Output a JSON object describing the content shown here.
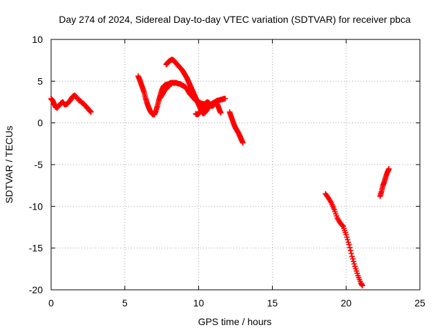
{
  "chart_data": {
    "type": "scatter",
    "title": "Day 274 of 2024, Sidereal Day-to-day VTEC variation (SDTVAR) for receiver pbca",
    "xlabel": "GPS time / hours",
    "ylabel": "SDTVAR / TECUs",
    "xlim": [
      0,
      25
    ],
    "ylim": [
      -20,
      10
    ],
    "xticks": [
      0,
      5,
      10,
      15,
      20,
      25
    ],
    "yticks": [
      -20,
      -15,
      -10,
      -5,
      0,
      5,
      10
    ],
    "grid": true,
    "marker": "plus",
    "color": "#ff0000",
    "series": [
      {
        "x": [
          0.0,
          0.1,
          0.2,
          0.3,
          0.4,
          0.5,
          0.6,
          0.7,
          0.8,
          0.9,
          1.0,
          1.1,
          1.2,
          1.3,
          1.4,
          1.5,
          1.6,
          1.7,
          1.8,
          1.9,
          2.0,
          2.1,
          2.2,
          2.3,
          2.4,
          2.5,
          2.6,
          2.7
        ],
        "y": [
          2.9,
          2.7,
          2.3,
          1.9,
          1.8,
          2.0,
          2.2,
          2.4,
          2.5,
          2.2,
          2.2,
          2.3,
          2.5,
          2.7,
          3.0,
          3.2,
          3.3,
          3.1,
          2.9,
          2.7,
          2.6,
          2.4,
          2.3,
          2.1,
          1.9,
          1.7,
          1.5,
          1.3
        ]
      },
      {
        "x": [
          5.9,
          6.0,
          6.1,
          6.2,
          6.3,
          6.4,
          6.5,
          6.6,
          6.7,
          6.8,
          6.9,
          7.0,
          7.1,
          7.2,
          7.3,
          7.4,
          7.5,
          7.6,
          7.7,
          7.8,
          7.9,
          8.0,
          8.1,
          8.2,
          8.3,
          8.4,
          8.5,
          8.6,
          8.7,
          8.8,
          8.9,
          9.0,
          9.1,
          9.2,
          9.3,
          9.4,
          9.5,
          9.6,
          9.7,
          9.8,
          9.9,
          10.0,
          10.1,
          10.2,
          10.3,
          10.4,
          10.5
        ],
        "y": [
          5.6,
          5.2,
          4.7,
          4.2,
          3.7,
          3.0,
          2.4,
          1.9,
          1.5,
          1.2,
          1.0,
          1.0,
          1.4,
          2.0,
          2.7,
          3.3,
          3.9,
          4.3,
          4.5,
          4.6,
          4.6,
          4.7,
          4.8,
          4.8,
          4.8,
          4.8,
          4.8,
          4.7,
          4.7,
          4.6,
          4.5,
          4.4,
          4.3,
          4.1,
          3.8,
          3.5,
          3.3,
          3.1,
          2.9,
          2.7,
          2.6,
          2.5,
          2.4,
          2.3,
          2.3,
          2.2,
          2.1
        ]
      },
      {
        "x": [
          7.8,
          7.9,
          8.0,
          8.1,
          8.2,
          8.3,
          8.4,
          8.5,
          8.6,
          8.7,
          8.8,
          8.9,
          9.0,
          9.1,
          9.2,
          9.3,
          9.4,
          9.5,
          9.6,
          9.7,
          9.8,
          9.9,
          10.0,
          10.1,
          10.2,
          10.3,
          10.4,
          10.5,
          10.6,
          10.7,
          10.8,
          10.9,
          11.0,
          11.1,
          11.2,
          11.3,
          11.4,
          11.5,
          11.6,
          11.7,
          11.8
        ],
        "y": [
          7.0,
          7.2,
          7.4,
          7.5,
          7.6,
          7.5,
          7.3,
          7.1,
          6.9,
          6.7,
          6.5,
          6.3,
          6.0,
          5.7,
          5.4,
          5.0,
          4.6,
          4.2,
          3.8,
          3.4,
          3.0,
          2.6,
          2.2,
          1.8,
          1.4,
          1.1,
          1.2,
          1.4,
          1.7,
          1.9,
          2.1,
          2.3,
          2.4,
          2.5,
          2.6,
          2.7,
          2.7,
          2.8,
          2.8,
          2.9,
          2.9
        ]
      },
      {
        "x": [
          7.4,
          7.5,
          7.6,
          7.7,
          7.8,
          7.9,
          8.0
        ],
        "y": [
          3.0,
          3.3,
          3.6,
          3.9,
          4.1,
          4.3,
          4.4
        ]
      },
      {
        "x": [
          9.8,
          9.9,
          10.0,
          10.1,
          10.2,
          10.3,
          10.4,
          10.5,
          10.6,
          10.7,
          10.8,
          10.9,
          11.0,
          11.1,
          11.2,
          11.3,
          11.4,
          11.5
        ],
        "y": [
          1.1,
          1.0,
          1.1,
          1.3,
          1.6,
          1.9,
          2.2,
          2.4,
          2.5,
          2.4,
          2.2,
          2.0,
          2.1,
          2.3,
          2.4,
          2.1,
          1.6,
          1.2
        ]
      },
      {
        "x": [
          12.1,
          12.2,
          12.3,
          12.4,
          12.5,
          12.6,
          12.7,
          12.8,
          12.9,
          13.0
        ],
        "y": [
          1.3,
          0.8,
          0.3,
          -0.2,
          -0.6,
          -0.9,
          -1.2,
          -1.6,
          -2.0,
          -2.4
        ]
      },
      {
        "x": [
          18.6,
          18.8,
          19.0,
          19.2,
          19.4,
          19.6,
          19.8,
          20.0,
          20.2,
          20.4,
          20.6,
          20.8,
          21.0,
          21.1
        ],
        "y": [
          -8.5,
          -9.0,
          -9.6,
          -10.4,
          -11.4,
          -12.0,
          -12.4,
          -13.4,
          -14.6,
          -16.0,
          -17.2,
          -18.3,
          -19.2,
          -19.5
        ]
      },
      {
        "x": [
          22.3,
          22.4,
          22.5,
          22.6,
          22.7,
          22.8,
          22.9
        ],
        "y": [
          -8.8,
          -8.2,
          -7.5,
          -7.0,
          -6.4,
          -5.9,
          -5.5
        ]
      }
    ]
  }
}
